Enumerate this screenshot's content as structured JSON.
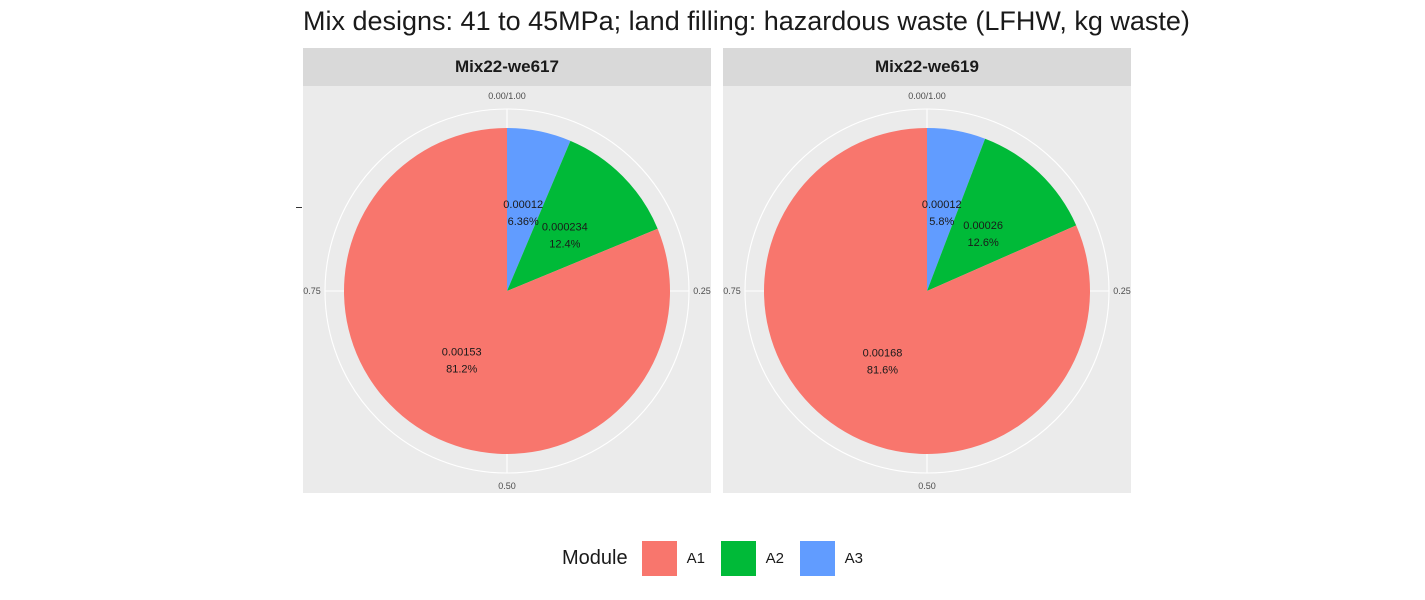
{
  "title": "Mix designs: 41 to 45MPa; land filling: hazardous waste (LFHW, kg waste)",
  "legend": {
    "title": "Module",
    "items": [
      {
        "label": "A1",
        "color": "#F8766D"
      },
      {
        "label": "A2",
        "color": "#00BA38"
      },
      {
        "label": "A3",
        "color": "#619CFF"
      }
    ]
  },
  "chart_data": [
    {
      "type": "pie",
      "panel": "Mix22-we617",
      "theta_ticks": [
        "0.00/1.00",
        "0.25",
        "0.50",
        "0.75"
      ],
      "slices": [
        {
          "module": "A3",
          "value_label": "0.00012",
          "percent_label": "6.36%",
          "fraction": 0.0636
        },
        {
          "module": "A2",
          "value_label": "0.000234",
          "percent_label": "12.4%",
          "fraction": 0.124
        },
        {
          "module": "A1",
          "value_label": "0.00153",
          "percent_label": "81.2%",
          "fraction": 0.812
        }
      ]
    },
    {
      "type": "pie",
      "panel": "Mix22-we619",
      "theta_ticks": [
        "0.00/1.00",
        "0.25",
        "0.50",
        "0.75"
      ],
      "slices": [
        {
          "module": "A3",
          "value_label": "0.00012",
          "percent_label": "5.8%",
          "fraction": 0.058
        },
        {
          "module": "A2",
          "value_label": "0.00026",
          "percent_label": "12.6%",
          "fraction": 0.126
        },
        {
          "module": "A1",
          "value_label": "0.00168",
          "percent_label": "81.6%",
          "fraction": 0.816
        }
      ]
    }
  ]
}
